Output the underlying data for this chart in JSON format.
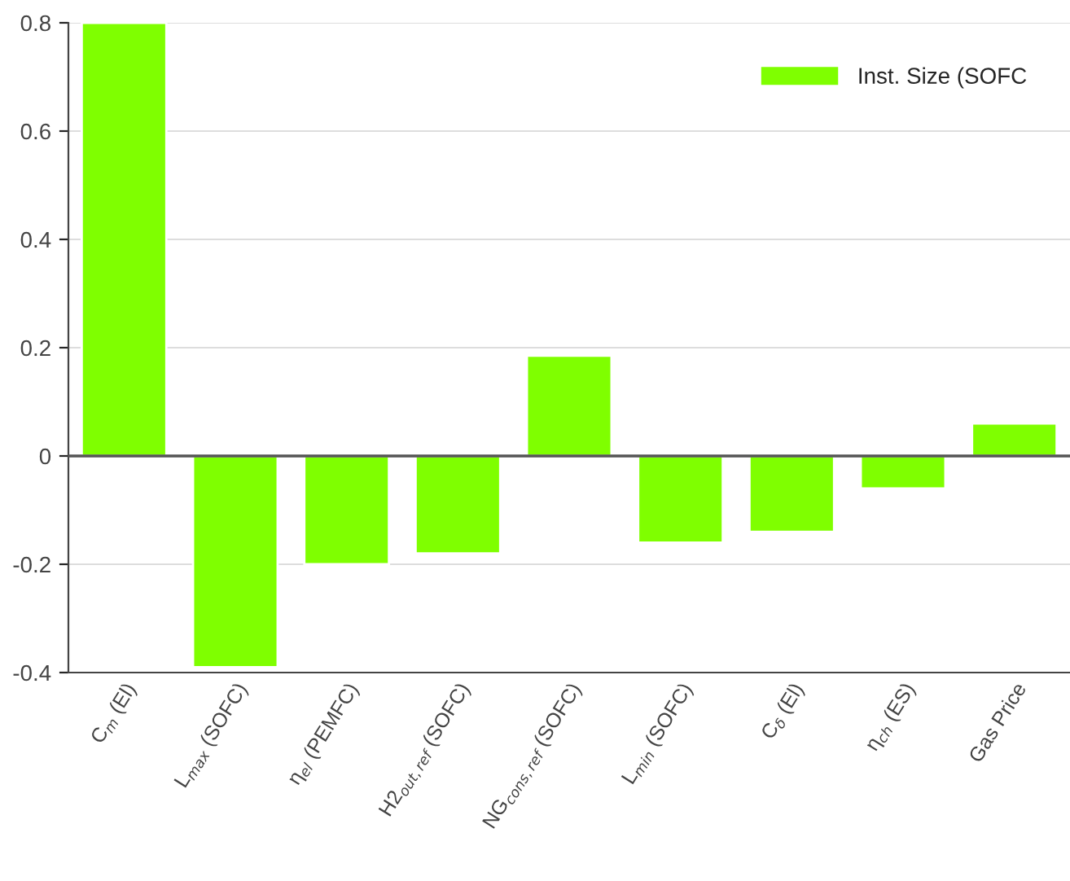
{
  "chart_data": {
    "type": "bar",
    "categories": [
      "C$_{m}$ (El)",
      "L$_{max}$ (SOFC)",
      "η$_{el}$ (PEMFC)",
      "H2$_{out,ref}$ (SOFC)",
      "NG$_{cons,ref}$ (SOFC)",
      "L$_{min}$ (SOFC)",
      "C$_{δ}$ (El)",
      "η$_{ch}$ (ES)",
      "Gas Price"
    ],
    "series": [
      {
        "name": "Inst. Size (SOFC",
        "color": "#7fff00",
        "values": [
          0.8,
          -0.39,
          -0.2,
          -0.18,
          0.185,
          -0.16,
          -0.14,
          -0.06,
          0.06
        ]
      }
    ],
    "ylim": [
      -0.4,
      0.8
    ],
    "yticks": [
      -0.4,
      -0.2,
      0,
      0.2,
      0.4,
      0.6,
      0.8
    ],
    "ref_lines": [
      {
        "axis": "y",
        "value": 0,
        "color": "#555555"
      }
    ],
    "grid": "y",
    "legend": "top right"
  }
}
